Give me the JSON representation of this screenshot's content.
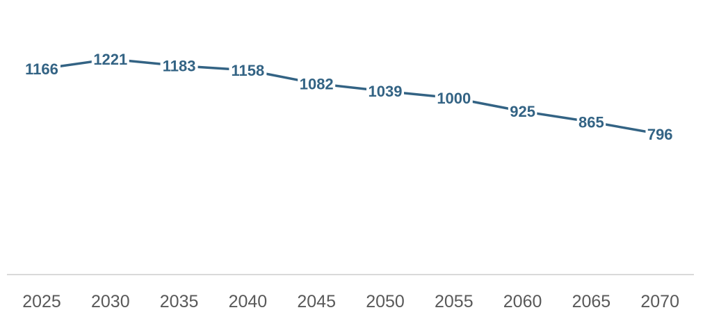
{
  "chart_data": {
    "type": "line",
    "x": [
      "2025",
      "2030",
      "2035",
      "2040",
      "2045",
      "2050",
      "2055",
      "2060",
      "2065",
      "2070"
    ],
    "series": [
      {
        "values": [
          1166,
          1221,
          1183,
          1158,
          1082,
          1039,
          1000,
          925,
          865,
          796
        ],
        "data_labels": [
          "1166",
          "1221",
          "1183",
          "1158",
          "1082",
          "1039",
          "1000",
          "925",
          "865",
          "796"
        ]
      }
    ],
    "ylim": [
      0,
      1500
    ],
    "grid": false,
    "legend": "none",
    "title": "",
    "xlabel": "",
    "ylabel": ""
  },
  "colors": {
    "series_line": "#336384",
    "axis_line": "#d9d9d9",
    "tick_text": "#595959",
    "background": "#ffffff"
  }
}
